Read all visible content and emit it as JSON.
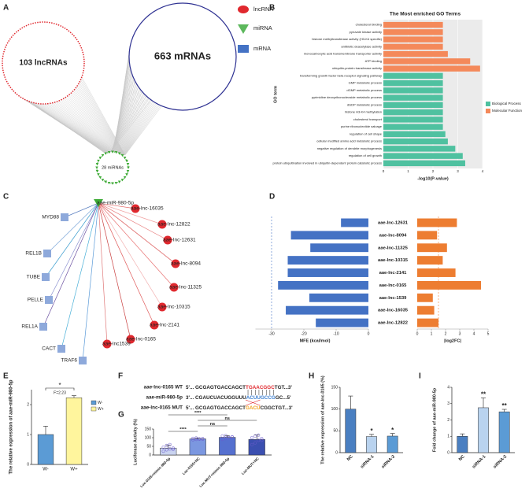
{
  "panel_labels": [
    "A",
    "B",
    "C",
    "D",
    "E",
    "F",
    "G",
    "H",
    "I"
  ],
  "network_a": {
    "lncrna_label": "103 lncRNAs",
    "mirna_label": "28 miRNAs",
    "mrna_label": "663 mRNAs",
    "legend": [
      "lncRNA",
      "miRNA",
      "mRNA"
    ]
  },
  "network_c": {
    "center": "aae-miR-980-5p",
    "lncrnas": [
      "aae-lnc-16035",
      "aae-lnc-12822",
      "aae-lnc-12631",
      "aae-lnc-8094",
      "aae-lnc-11325",
      "aae-lnc-10315",
      "aae-lnc-2141",
      "aae-lnc-0165",
      "aae-lnc1539"
    ],
    "mrnas": [
      "MYD88",
      "REL1B",
      "TUBE",
      "PELLE",
      "REL1A",
      "CACT",
      "TRAF6"
    ]
  },
  "sequences": [
    {
      "label": "aae-lnc-0165 WT",
      "prefix": "5'... GCGAGTGACCAGCT",
      "highlight": "TGAACGGC",
      "suffix": "TGT...3'",
      "highlight_color": "#e0282e"
    },
    {
      "label": "aae-miR-980-5p",
      "prefix": "3'... CGAUCUACUGGUUU",
      "highlight": "ACUUGCCG",
      "suffix": "GC...5'",
      "highlight_color": "#3b7fd1"
    },
    {
      "label": "aae-lnc-0165 MUT",
      "prefix": "5'... GCGAGTGACCAGCT",
      "highlight": "GACU",
      "suffix": "CGGCTGT...3'",
      "highlight_color": "#f0a01e"
    }
  ],
  "chart_data": [
    {
      "type": "bar",
      "horizontal": true,
      "title": "The Most enriched GO Terms",
      "xlabel": "-log10(P-value)",
      "ylabel": "GO term",
      "categories": [
        "cholesterol binding",
        "pyruvate kinase activity",
        "histone methyltransferase activity (H3-K4 specific)",
        "antibiotic deacetylase activity",
        "monocarboxylic acid transmembrane transporter activity",
        "ATP binding",
        "ubiquitin-protein transferase activity",
        "transforming growth factor beta receptor signaling pathway",
        "GMP metabolic process",
        "dGMP metabolic process",
        "pyrimidine deoxyribonucleoside metabolic process",
        "dGDP metabolic process",
        "histone H3-K4 methylation",
        "cholesterol transport",
        "purine ribonucleotide salvage",
        "regulation of cell shape",
        "cellular modified amino acid metabolic process",
        "negative regulation of dendrite morphogenesis",
        "regulation of cell growth",
        "protein ubiquitination involved in ubiquitin-dependent protein catabolic process"
      ],
      "series": [
        {
          "name": "Biological Process",
          "color": "#4fc1a0",
          "values": [
            null,
            null,
            null,
            null,
            null,
            null,
            null,
            2.4,
            2.4,
            2.4,
            2.4,
            2.4,
            2.4,
            2.4,
            2.4,
            2.5,
            2.6,
            2.9,
            3.2,
            3.3
          ]
        },
        {
          "name": "Molecular Function",
          "color": "#f4895a",
          "values": [
            2.4,
            2.4,
            2.4,
            2.4,
            2.6,
            3.5,
            3.9,
            null,
            null,
            null,
            null,
            null,
            null,
            null,
            null,
            null,
            null,
            null,
            null,
            null
          ]
        }
      ],
      "xlim": [
        0,
        4
      ],
      "xticks": [
        0,
        1,
        2,
        3,
        4
      ],
      "grid": true,
      "legend": "right"
    },
    {
      "type": "bar",
      "horizontal": true,
      "categories": [
        "aae-lnc-12631",
        "aae-lnc-8094",
        "aae-lnc-11325",
        "aae-lnc-10315",
        "aae-lnc-2141",
        "aae-lnc-0165",
        "aae-lnc-1539",
        "aae-lnc-16035",
        "aae-lnc-12822"
      ],
      "series": [
        {
          "name": "MFE (kcal/mol)",
          "color": "#4472c4",
          "axis": "x",
          "values": [
            -8.5,
            -24,
            -18,
            -25,
            -25,
            -28,
            -18.3,
            -25.6,
            -16.3
          ]
        },
        {
          "name": "|log2FC|",
          "color": "#ed7d31",
          "axis": "x2",
          "values": [
            2.8,
            1.4,
            2.1,
            1.8,
            2.7,
            4.5,
            1.1,
            1.2,
            1.5
          ]
        }
      ],
      "xlim": [
        -35,
        0
      ],
      "xticks": [
        -30,
        -20,
        -10,
        0
      ],
      "x2lim": [
        0,
        5
      ],
      "x2ticks": [
        0,
        1,
        2,
        3,
        4,
        5
      ],
      "reference_lines": {
        "x": -30,
        "x2": 1.5
      }
    },
    {
      "type": "bar",
      "ylabel": "The relative expression of aae-miR-980-5p",
      "categories": [
        "W-",
        "W+"
      ],
      "values": [
        1.0,
        2.23
      ],
      "errors": [
        0.28,
        0.07
      ],
      "colors": [
        "#5b9bd5",
        "#fff59d"
      ],
      "ylim": [
        0,
        2.5
      ],
      "yticks": [
        0,
        1,
        2
      ],
      "significance": "*",
      "annotation": "F=2.23",
      "legend": "top-right"
    },
    {
      "type": "bar",
      "ylabel": "Luciferase Activity (%)",
      "categories": [
        "Luc-0165+mimic-980-5p",
        "Luc-0165+NC",
        "Luc-MUT+mimic-980-5p",
        "Luc-MUT+NC"
      ],
      "values": [
        40,
        93,
        102,
        90
      ],
      "errors": [
        18,
        6,
        10,
        25
      ],
      "points": [
        [
          22,
          30,
          35,
          40,
          45,
          55,
          60,
          33
        ],
        [
          88,
          90,
          92,
          95,
          96,
          98,
          93,
          91
        ],
        [
          90,
          95,
          100,
          105,
          110,
          112,
          100,
          104
        ],
        [
          60,
          70,
          85,
          95,
          100,
          110,
          115,
          85
        ]
      ],
      "colors": [
        "#c9d3f0",
        "#7b97e0",
        "#5570cf",
        "#3b4fb0"
      ],
      "ylim": [
        0,
        150
      ],
      "yticks": [
        0,
        50,
        100,
        150
      ],
      "comparisons": [
        {
          "label": "****",
          "pair": [
            0,
            2
          ]
        },
        {
          "label": "ns",
          "pair": [
            1,
            3
          ]
        },
        {
          "label": "ns",
          "pair": [
            1,
            2
          ]
        },
        {
          "label": "****",
          "pair": [
            0,
            1
          ]
        }
      ]
    },
    {
      "type": "bar",
      "ylabel": "The relative expression of aae-lnc-0165 (%)",
      "categories": [
        "NC",
        "siRNA-1",
        "siRNA-2"
      ],
      "values": [
        100,
        37,
        38
      ],
      "errors": [
        30,
        5,
        6
      ],
      "colors": [
        "#4a7fc1",
        "#b9d3ef",
        "#5b9bd5"
      ],
      "value_annotations": [
        null,
        "*",
        "*"
      ],
      "ylim": [
        0,
        150
      ],
      "yticks": [
        0,
        50,
        100,
        150
      ]
    },
    {
      "type": "bar",
      "ylabel": "Fold change of aae-miR-980-5p",
      "categories": [
        "NC",
        "siRNA-1",
        "siRNA-2"
      ],
      "values": [
        1.0,
        2.75,
        2.5
      ],
      "errors": [
        0.15,
        0.6,
        0.15
      ],
      "colors": [
        "#4a7fc1",
        "#b9d3ef",
        "#5b9bd5"
      ],
      "value_annotations": [
        null,
        "**",
        "**"
      ],
      "ylim": [
        0,
        4
      ],
      "yticks": [
        0,
        1,
        2,
        3,
        4
      ]
    }
  ]
}
